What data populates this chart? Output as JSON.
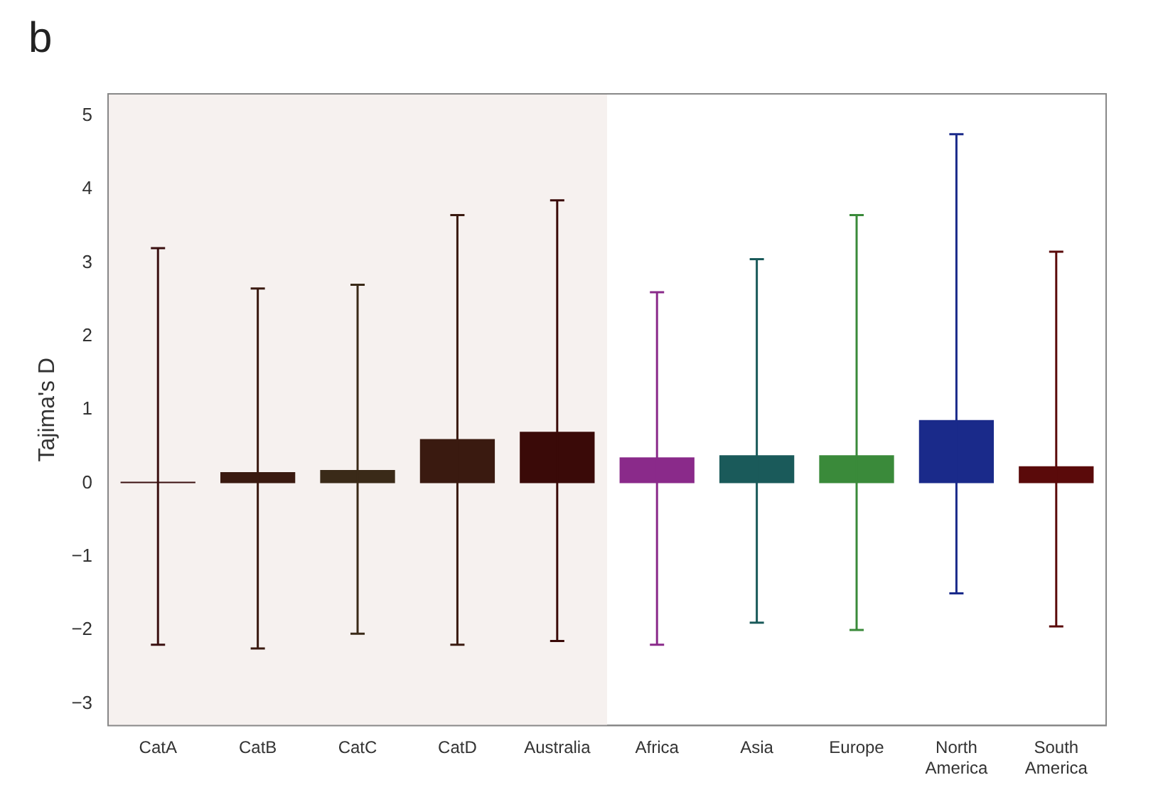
{
  "chart_data": {
    "type": "bar",
    "title": "b",
    "ylabel": "Tajima's D",
    "categories": [
      "CatA",
      "CatB",
      "CatC",
      "CatD",
      "Australia",
      "Africa",
      "Asia",
      "Europe",
      "North America",
      "South America"
    ],
    "values": [
      0.02,
      0.15,
      0.18,
      0.6,
      0.7,
      0.35,
      0.38,
      0.38,
      0.86,
      0.23
    ],
    "colors": [
      "#3a1010",
      "#3a1a10",
      "#3a2a18",
      "#3a1a10",
      "#3a0a08",
      "#8a2a8a",
      "#1a5a5a",
      "#3a8a3a",
      "#1a2a8a",
      "#5a0a0a"
    ],
    "errors": [
      [
        -2.2,
        3.2
      ],
      [
        -2.25,
        2.65
      ],
      [
        -2.05,
        2.7
      ],
      [
        -2.2,
        3.65
      ],
      [
        -2.15,
        3.85
      ],
      [
        -2.2,
        2.6
      ],
      [
        -1.9,
        3.05
      ],
      [
        -2.0,
        3.65
      ],
      [
        -1.5,
        4.75
      ],
      [
        -1.95,
        3.15
      ]
    ],
    "bands": [
      {
        "axis": "x",
        "from": "CatA",
        "to": "Australia",
        "color": "#f6f1ef"
      }
    ],
    "ylim": [
      -3.3,
      5.3
    ],
    "yticks": [
      -3,
      -2,
      -1,
      0,
      1,
      2,
      3,
      4,
      5
    ],
    "grid": false,
    "legend": false
  }
}
